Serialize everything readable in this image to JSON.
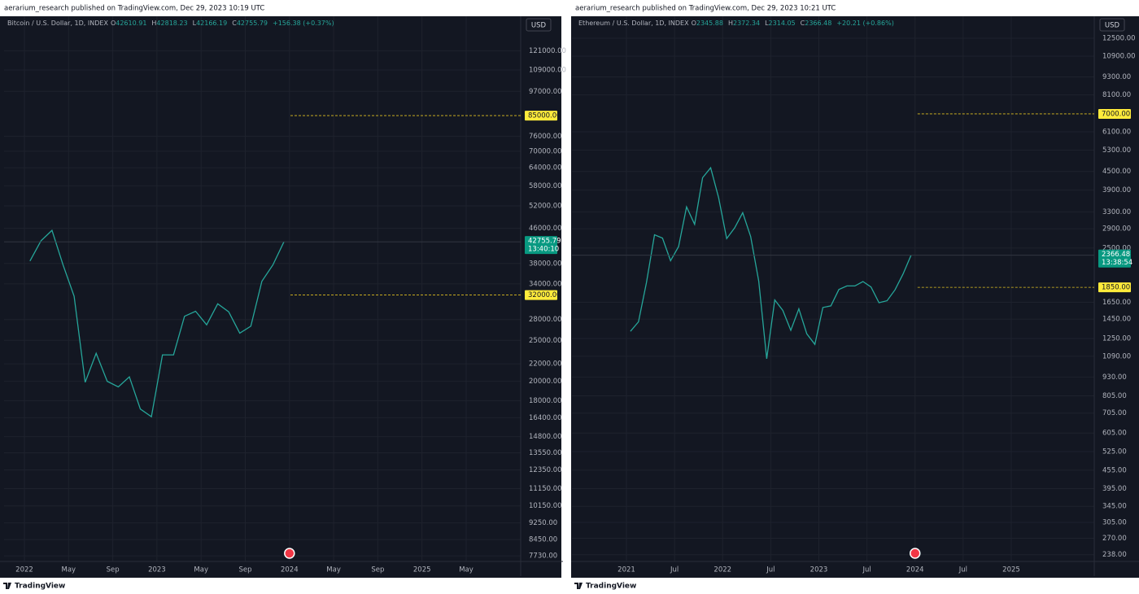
{
  "chart_data": [
    {
      "type": "line",
      "publisher": "aerarium_research published on TradingView.com, Dec 29, 2023 10:19 UTC",
      "symbol": "Bitcoin / U.S. Dollar, 1D, INDEX",
      "ohlc": [
        {
          "key": "O",
          "value": 42610.91
        },
        {
          "key": "H",
          "value": 42818.23
        },
        {
          "key": "L",
          "value": 42166.19
        },
        {
          "key": "C",
          "value": 42755.79
        }
      ],
      "change": "+156.38 (+0.37%)",
      "currency": "USD",
      "color": "#26a69a",
      "log_scale": true,
      "grid": true,
      "x": [
        "2022-01",
        "2022-02",
        "2022-03",
        "2022-04",
        "2022-05",
        "2022-06",
        "2022-07",
        "2022-08",
        "2022-09",
        "2022-10",
        "2022-11",
        "2022-12",
        "2023-01",
        "2023-02",
        "2023-03",
        "2023-04",
        "2023-05",
        "2023-06",
        "2023-07",
        "2023-08",
        "2023-09",
        "2023-10",
        "2023-11",
        "2023-12"
      ],
      "values": [
        38500,
        43000,
        45500,
        37700,
        31800,
        19900,
        23300,
        20000,
        19400,
        20500,
        17200,
        16500,
        23100,
        23100,
        28500,
        29300,
        27200,
        30500,
        29200,
        26000,
        27000,
        34500,
        37700,
        42755.79
      ],
      "last_price": 42755.79,
      "countdown": "13:40:10",
      "levels": [
        {
          "value": 85000,
          "label": "85000.00"
        },
        {
          "value": 32000,
          "label": "32000.00"
        }
      ],
      "ylim": [
        7500,
        146000
      ],
      "yticks": [
        {
          "value": 121000,
          "label": "121000.00"
        },
        {
          "value": 109000,
          "label": "109000.00"
        },
        {
          "value": 97000,
          "label": "97000.00"
        },
        {
          "value": 76000,
          "label": "76000.00"
        },
        {
          "value": 70000,
          "label": "70000.00"
        },
        {
          "value": 64000,
          "label": "64000.00"
        },
        {
          "value": 58000,
          "label": "58000.00"
        },
        {
          "value": 52000,
          "label": "52000.00"
        },
        {
          "value": 46000,
          "label": "46000.00"
        },
        {
          "value": 38000,
          "label": "38000.00"
        },
        {
          "value": 34000,
          "label": "34000.00"
        },
        {
          "value": 28000,
          "label": "28000.00"
        },
        {
          "value": 25000,
          "label": "25000.00"
        },
        {
          "value": 22000,
          "label": "22000.00"
        },
        {
          "value": 20000,
          "label": "20000.00"
        },
        {
          "value": 18000,
          "label": "18000.00"
        },
        {
          "value": 16400,
          "label": "16400.00"
        },
        {
          "value": 14800,
          "label": "14800.00"
        },
        {
          "value": 13550,
          "label": "13550.00"
        },
        {
          "value": 12350,
          "label": "12350.00"
        },
        {
          "value": 11150,
          "label": "11150.00"
        },
        {
          "value": 10150,
          "label": "10150.00"
        },
        {
          "value": 9250,
          "label": "9250.00"
        },
        {
          "value": 8450,
          "label": "8450.00"
        },
        {
          "value": 7730,
          "label": "7730.00"
        }
      ],
      "xticks": [
        {
          "value": "2022-01",
          "label": "2022"
        },
        {
          "value": "2022-05",
          "label": "May"
        },
        {
          "value": "2022-09",
          "label": "Sep"
        },
        {
          "value": "2023-01",
          "label": "2023"
        },
        {
          "value": "2023-05",
          "label": "May"
        },
        {
          "value": "2023-09",
          "label": "Sep"
        },
        {
          "value": "2024-01",
          "label": "2024"
        },
        {
          "value": "2024-05",
          "label": "May"
        },
        {
          "value": "2024-09",
          "label": "Sep"
        },
        {
          "value": "2025-01",
          "label": "2025"
        },
        {
          "value": "2025-05",
          "label": "May"
        }
      ],
      "brand": "TradingView"
    },
    {
      "type": "line",
      "publisher": "aerarium_research published on TradingView.com, Dec 29, 2023 10:21 UTC",
      "symbol": "Ethereum / U.S. Dollar, 1D, INDEX",
      "ohlc": [
        {
          "key": "O",
          "value": 2345.88
        },
        {
          "key": "H",
          "value": 2372.34
        },
        {
          "key": "L",
          "value": 2314.05
        },
        {
          "key": "C",
          "value": 2366.48
        }
      ],
      "change": "+20.21 (+0.86%)",
      "currency": "USD",
      "color": "#26a69a",
      "log_scale": true,
      "grid": true,
      "x": [
        "2021-01",
        "2021-02",
        "2021-03",
        "2021-04",
        "2021-05",
        "2021-06",
        "2021-07",
        "2021-08",
        "2021-09",
        "2021-10",
        "2021-11",
        "2021-12",
        "2022-01",
        "2022-02",
        "2022-03",
        "2022-04",
        "2022-05",
        "2022-06",
        "2022-07",
        "2022-08",
        "2022-09",
        "2022-10",
        "2022-11",
        "2022-12",
        "2023-01",
        "2023-02",
        "2023-03",
        "2023-04",
        "2023-05",
        "2023-06",
        "2023-07",
        "2023-08",
        "2023-09",
        "2023-10",
        "2023-11",
        "2023-12"
      ],
      "values": [
        1320,
        1420,
        1920,
        2770,
        2700,
        2270,
        2530,
        3430,
        3000,
        4290,
        4630,
        3680,
        2690,
        2920,
        3280,
        2730,
        1940,
        1070,
        1680,
        1550,
        1330,
        1570,
        1295,
        1195,
        1585,
        1605,
        1820,
        1870,
        1870,
        1935,
        1855,
        1645,
        1670,
        1815,
        2050,
        2366.48
      ],
      "last_price": 2366.48,
      "countdown": "13:38:54",
      "levels": [
        {
          "value": 7000,
          "label": "7000.00"
        },
        {
          "value": 1850,
          "label": "1850.00"
        }
      ],
      "ylim": [
        226,
        14800
      ],
      "yticks": [
        {
          "value": 12500,
          "label": "12500.00"
        },
        {
          "value": 10900,
          "label": "10900.00"
        },
        {
          "value": 9300,
          "label": "9300.00"
        },
        {
          "value": 8100,
          "label": "8100.00"
        },
        {
          "value": 6100,
          "label": "6100.00"
        },
        {
          "value": 5300,
          "label": "5300.00"
        },
        {
          "value": 4500,
          "label": "4500.00"
        },
        {
          "value": 3900,
          "label": "3900.00"
        },
        {
          "value": 3300,
          "label": "3300.00"
        },
        {
          "value": 2900,
          "label": "2900.00"
        },
        {
          "value": 2500,
          "label": "2500.00"
        },
        {
          "value": 1650,
          "label": "1650.00"
        },
        {
          "value": 1450,
          "label": "1450.00"
        },
        {
          "value": 1250,
          "label": "1250.00"
        },
        {
          "value": 1090,
          "label": "1090.00"
        },
        {
          "value": 930,
          "label": "930.00"
        },
        {
          "value": 805,
          "label": "805.00"
        },
        {
          "value": 705,
          "label": "705.00"
        },
        {
          "value": 605,
          "label": "605.00"
        },
        {
          "value": 525,
          "label": "525.00"
        },
        {
          "value": 455,
          "label": "455.00"
        },
        {
          "value": 395,
          "label": "395.00"
        },
        {
          "value": 345,
          "label": "345.00"
        },
        {
          "value": 305,
          "label": "305.00"
        },
        {
          "value": 270,
          "label": "270.00"
        },
        {
          "value": 238,
          "label": "238.00"
        }
      ],
      "xticks": [
        {
          "value": "2021-01",
          "label": "2021"
        },
        {
          "value": "2021-07",
          "label": "Jul"
        },
        {
          "value": "2022-01",
          "label": "2022"
        },
        {
          "value": "2022-07",
          "label": "Jul"
        },
        {
          "value": "2023-01",
          "label": "2023"
        },
        {
          "value": "2023-07",
          "label": "Jul"
        },
        {
          "value": "2024-01",
          "label": "2024"
        },
        {
          "value": "2024-07",
          "label": "Jul"
        },
        {
          "value": "2025-01",
          "label": "2025"
        }
      ],
      "brand": "TradingView"
    }
  ]
}
